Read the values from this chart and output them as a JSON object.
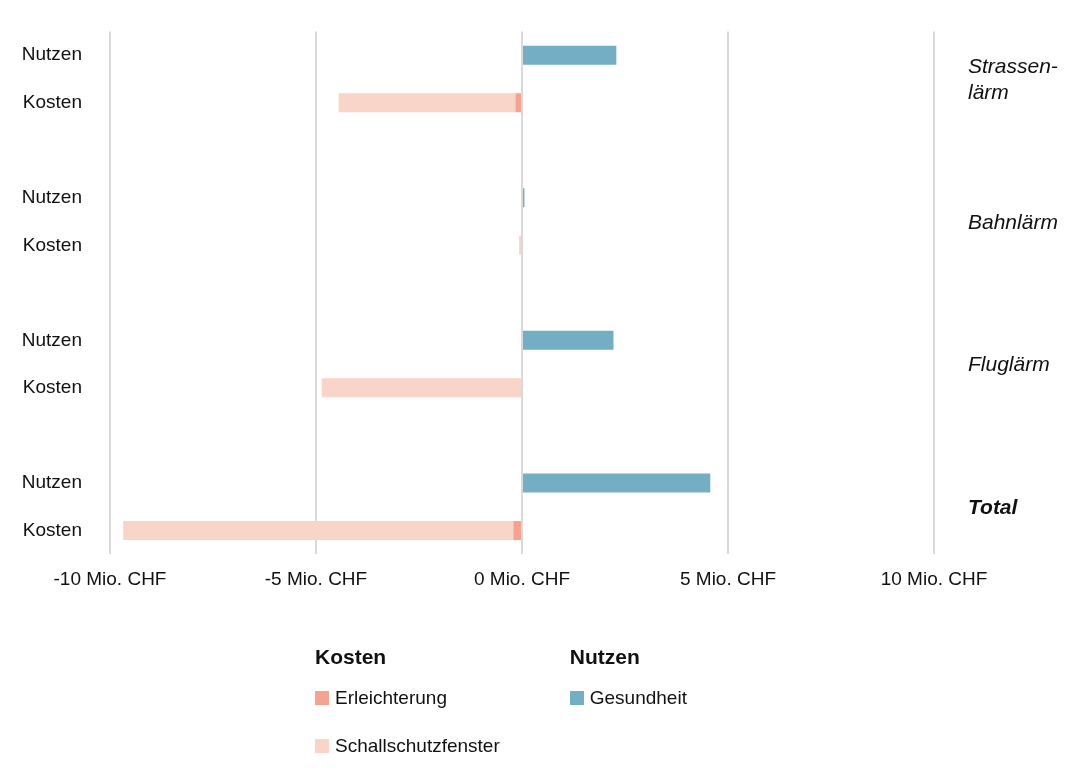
{
  "chart_data": {
    "type": "bar",
    "orientation": "horizontal",
    "stacked": true,
    "categories": [
      "Nutzen",
      "Kosten",
      null,
      "Nutzen",
      "Kosten",
      null,
      "Nutzen",
      "Kosten",
      null,
      "Nutzen",
      "Kosten"
    ],
    "series": [
      {
        "name": "Erleichterung",
        "color": "#f4a391",
        "values": [
          null,
          -0.16,
          null,
          null,
          null,
          null,
          null,
          null,
          null,
          null,
          -0.21
        ]
      },
      {
        "name": "Schallschutzfenster",
        "color": "#f9d4c9",
        "values": [
          null,
          -4.29,
          null,
          null,
          -0.07,
          null,
          null,
          -4.86,
          null,
          null,
          -9.47
        ]
      },
      {
        "name": "Gesundheit",
        "color": "#74aec4",
        "values": [
          2.29,
          null,
          null,
          0.06,
          null,
          null,
          2.22,
          null,
          null,
          4.57,
          null
        ]
      }
    ],
    "xlim": [
      -10,
      10
    ],
    "xticks": [
      {
        "value": -10,
        "label": "-10 Mio. CHF"
      },
      {
        "value": -5,
        "label": "-5 Mio. CHF"
      },
      {
        "value": 0,
        "label": "0 Mio. CHF"
      },
      {
        "value": 5,
        "label": "5 Mio. CHF"
      },
      {
        "value": 10,
        "label": "10 Mio. CHF"
      }
    ],
    "grid": "x",
    "legend": "bottom",
    "annotations": [
      "Strassen-lärm",
      "Bahnlärm",
      "Fluglärm",
      "Total",
      "Kosten",
      "Nutzen"
    ]
  }
}
